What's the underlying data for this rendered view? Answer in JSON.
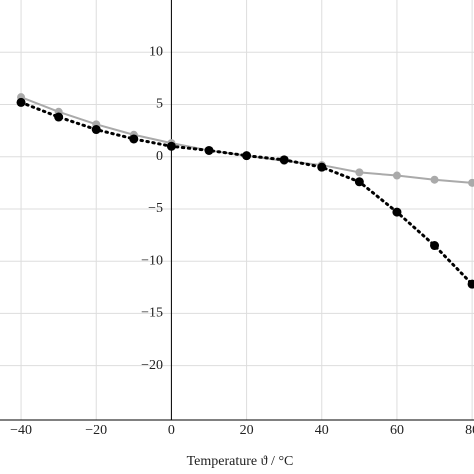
{
  "chart_data": {
    "type": "line",
    "x_label": "Temperature ϑ / °C",
    "x": [
      -40,
      -30,
      -20,
      -10,
      0,
      10,
      20,
      30,
      40,
      50,
      60,
      70,
      80
    ],
    "series": [
      {
        "color": "#aaaaaa",
        "style": "solid",
        "values": [
          5.7,
          4.3,
          3.1,
          2.1,
          1.3,
          0.6,
          0.1,
          -0.4,
          -0.8,
          -1.5,
          -1.8,
          -2.2,
          -2.5
        ]
      },
      {
        "color": "#000000",
        "style": "dotted",
        "values": [
          5.2,
          3.8,
          2.6,
          1.7,
          1.0,
          0.6,
          0.1,
          -0.3,
          -1.0,
          -2.4,
          -5.3,
          -8.5,
          -12.2
        ]
      }
    ],
    "xlim": [
      -45.6,
      80.5
    ],
    "ylim": [
      -25.2,
      15
    ],
    "xticks": [
      {
        "value": -40,
        "label": "−40"
      },
      {
        "value": -20,
        "label": "−20"
      },
      0,
      20,
      40,
      60,
      80
    ],
    "yticks": [
      10,
      5,
      0,
      {
        "value": -5,
        "label": "−5"
      },
      {
        "value": -10,
        "label": "−10"
      },
      {
        "value": -15,
        "label": "−15"
      },
      {
        "value": -20,
        "label": "−20"
      }
    ],
    "grid": true
  }
}
